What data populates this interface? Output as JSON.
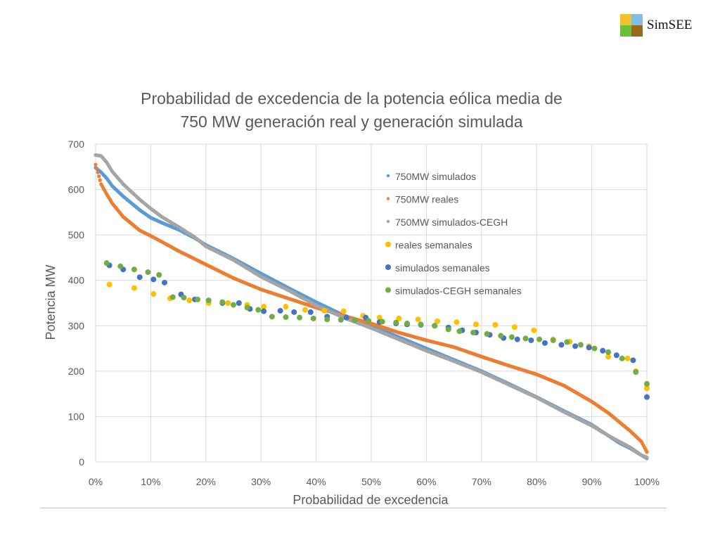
{
  "logo": {
    "text": "SimSEE",
    "colors": [
      "#f2c12e",
      "#7fbfe6",
      "#6cbf3a",
      "#9a6a1c"
    ]
  },
  "chart_data": {
    "type": "scatter",
    "title_line1": "Probabilidad de excedencia de la potencia eólica media de",
    "title_line2": "750 MW generación real y generación simulada",
    "xlabel": "Probabilidad de excedencia",
    "ylabel": "Potencia MW",
    "xlim": [
      0,
      100
    ],
    "ylim": [
      0,
      700
    ],
    "x_ticks": [
      "0%",
      "10%",
      "20%",
      "30%",
      "40%",
      "50%",
      "60%",
      "70%",
      "80%",
      "90%",
      "100%"
    ],
    "y_ticks": [
      "0",
      "100",
      "200",
      "300",
      "400",
      "500",
      "600",
      "700"
    ],
    "grid": true,
    "legend_position": "right-inside-top",
    "series": [
      {
        "name": "750MW simulados",
        "color": "#5b9bd5",
        "marker": "small",
        "x": [
          0,
          1,
          2,
          3,
          5,
          8,
          10,
          12,
          15,
          18,
          20,
          25,
          30,
          35,
          40,
          45,
          50,
          55,
          60,
          65,
          70,
          75,
          80,
          85,
          90,
          93,
          95,
          97,
          99,
          100
        ],
        "y": [
          648,
          638,
          625,
          608,
          585,
          555,
          538,
          527,
          512,
          493,
          478,
          448,
          415,
          383,
          352,
          323,
          300,
          275,
          250,
          225,
          200,
          172,
          143,
          112,
          82,
          58,
          42,
          30,
          15,
          8
        ]
      },
      {
        "name": "750MW reales",
        "color": "#ed7d31",
        "marker": "small",
        "x": [
          0,
          1,
          2,
          3,
          5,
          8,
          10,
          12,
          15,
          20,
          25,
          30,
          35,
          40,
          45,
          50,
          55,
          60,
          65,
          70,
          75,
          80,
          85,
          90,
          93,
          95,
          97,
          99,
          100
        ],
        "y": [
          655,
          612,
          590,
          570,
          540,
          510,
          498,
          485,
          465,
          435,
          405,
          380,
          360,
          340,
          322,
          305,
          285,
          268,
          253,
          232,
          212,
          193,
          168,
          133,
          108,
          88,
          68,
          45,
          22
        ]
      },
      {
        "name": "750MW simulados-CEGH",
        "color": "#a5a5a5",
        "marker": "small",
        "x": [
          0,
          1,
          2,
          3,
          5,
          8,
          10,
          12,
          15,
          18,
          20,
          25,
          30,
          35,
          40,
          45,
          50,
          55,
          60,
          65,
          70,
          75,
          80,
          85,
          90,
          93,
          95,
          97,
          99,
          100
        ],
        "y": [
          676,
          674,
          660,
          640,
          612,
          578,
          558,
          540,
          518,
          495,
          475,
          445,
          408,
          378,
          345,
          318,
          295,
          270,
          245,
          222,
          198,
          170,
          142,
          110,
          80,
          58,
          45,
          32,
          15,
          10
        ]
      },
      {
        "name": "reales semanales",
        "color": "#ffc000",
        "marker": "large",
        "x": [
          2.5,
          7,
          10.5,
          13.5,
          17,
          20.5,
          24,
          27.5,
          30.5,
          34.5,
          38,
          41.5,
          45,
          48.5,
          51.5,
          55,
          58.5,
          62,
          65.5,
          69,
          72.5,
          76,
          79.5,
          83,
          86,
          89.5,
          93,
          96.5,
          98,
          100
        ],
        "y": [
          391,
          383,
          370,
          360,
          356,
          350,
          350,
          346,
          342,
          342,
          335,
          333,
          332,
          322,
          318,
          316,
          314,
          310,
          308,
          303,
          302,
          297,
          290,
          270,
          265,
          255,
          232,
          228,
          200,
          162
        ]
      },
      {
        "name": "simulados semanales",
        "color": "#4472c4",
        "marker": "large",
        "x": [
          2.5,
          5,
          8,
          10.5,
          12.5,
          15.5,
          18,
          23,
          26,
          28,
          30.5,
          33.5,
          36,
          39,
          42,
          45.5,
          49,
          51.5,
          54.5,
          56.5,
          59,
          61.5,
          64,
          66.5,
          69,
          71.5,
          74,
          76.5,
          79,
          81.5,
          84.5,
          87,
          89.5,
          92,
          94.5,
          97.5,
          100
        ],
        "y": [
          433,
          424,
          407,
          402,
          395,
          369,
          358,
          350,
          350,
          337,
          332,
          333,
          330,
          330,
          320,
          318,
          318,
          308,
          305,
          303,
          302,
          300,
          296,
          290,
          285,
          280,
          273,
          270,
          268,
          262,
          258,
          255,
          252,
          245,
          235,
          224,
          143
        ]
      },
      {
        "name": "simulados-CEGH semanales",
        "color": "#70ad47",
        "marker": "large",
        "x": [
          2,
          4.5,
          7,
          9.5,
          11.5,
          14,
          16,
          18.5,
          20.5,
          23,
          25,
          27.5,
          29.5,
          32,
          34.5,
          37,
          39.5,
          42,
          44.5,
          47,
          49.5,
          52,
          54.5,
          56.5,
          59,
          61.5,
          64,
          66,
          68.5,
          71,
          73.5,
          75.5,
          78,
          80.5,
          83,
          85.5,
          88,
          90.5,
          93,
          95.5,
          98,
          100
        ],
        "y": [
          438,
          431,
          424,
          418,
          412,
          363,
          362,
          358,
          356,
          352,
          346,
          340,
          335,
          320,
          319,
          318,
          316,
          314,
          313,
          312,
          311,
          309,
          307,
          305,
          303,
          300,
          292,
          288,
          285,
          282,
          278,
          275,
          272,
          270,
          268,
          264,
          258,
          250,
          242,
          228,
          198,
          172
        ]
      }
    ]
  }
}
